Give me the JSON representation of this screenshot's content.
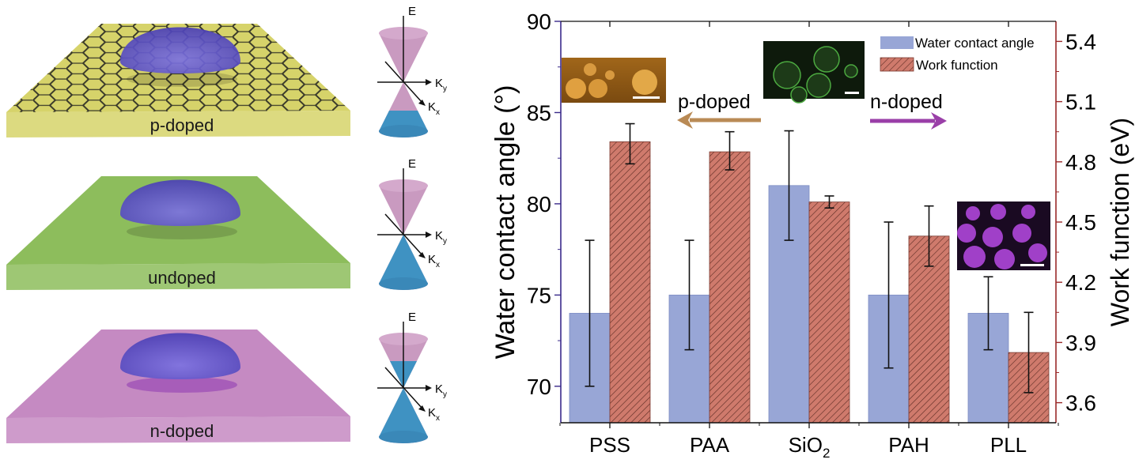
{
  "panels": [
    {
      "label": "p-doped",
      "color": "#d6d36a",
      "fermi": "below"
    },
    {
      "label": "undoped",
      "color": "#8dbd5c",
      "fermi": "dirac"
    },
    {
      "label": "n-doped",
      "color": "#c58ac2",
      "fermi": "above"
    }
  ],
  "dirac_axes": {
    "e": "E",
    "ky": "K",
    "ky_sub": "y",
    "kx": "K",
    "kx_sub": "x"
  },
  "chart_data": {
    "type": "bar",
    "categories": [
      "PSS",
      "PAA",
      "SiO",
      "PAH",
      "PLL"
    ],
    "category_subscripts": [
      "",
      "",
      "2",
      "",
      ""
    ],
    "ylabel": "Water contact angle (°)",
    "ylabel_right": "Work function (eV)",
    "ylim": [
      68,
      90
    ],
    "ylim_right": [
      3.5,
      5.5
    ],
    "yticks": [
      "70",
      "75",
      "80",
      "85",
      "90"
    ],
    "yticks_right": [
      "3.6",
      "3.9",
      "4.2",
      "4.5",
      "4.8",
      "5.1",
      "5.4"
    ],
    "legend_position": "top-right",
    "series": [
      {
        "name": "Water contact angle",
        "axis": "left",
        "color": "#98a6d6",
        "values": [
          74,
          75,
          81,
          75,
          74
        ],
        "err_low": [
          70,
          72,
          78,
          71,
          72
        ],
        "err_high": [
          78,
          78,
          84,
          79,
          76
        ]
      },
      {
        "name": "Work function",
        "axis": "right",
        "color": "#c9766a",
        "pattern": "hatched",
        "values": [
          4.9,
          4.85,
          4.6,
          4.43,
          3.85
        ],
        "err_low": [
          4.79,
          4.76,
          4.57,
          4.28,
          3.65
        ],
        "err_high": [
          4.99,
          4.95,
          4.63,
          4.58,
          4.05
        ]
      }
    ],
    "annotations": {
      "p_doped": "p-doped",
      "p_color": "#b98a55",
      "n_doped": "n-doped",
      "n_color": "#9a3fa8"
    },
    "axis_colors": {
      "left": "#3a2a8a",
      "right": "#9a2a2a"
    }
  }
}
